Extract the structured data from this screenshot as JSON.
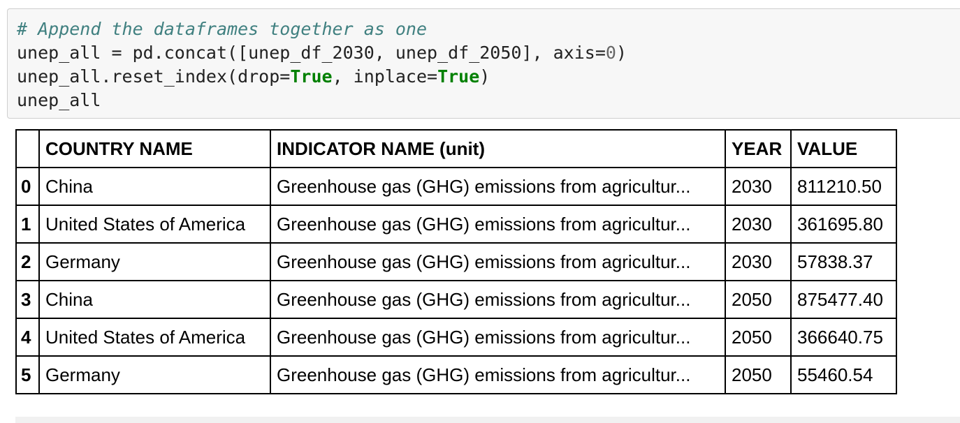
{
  "code_cell": {
    "lines": [
      {
        "comment": "# Append the dataframes together as one"
      },
      {
        "t1": "unep_all = pd.concat([unep_df_2030, unep_df_2050], axis=",
        "n1": "0",
        "t2": ")"
      },
      {
        "t1": "unep_all.reset_index(drop=",
        "k1": "True",
        "t2": ", inplace=",
        "k2": "True",
        "t3": ")"
      },
      {
        "t1": "unep_all"
      }
    ]
  },
  "table": {
    "columns": [
      "",
      "COUNTRY NAME",
      "INDICATOR NAME (unit)",
      "YEAR",
      "VALUE"
    ],
    "rows": [
      {
        "index": "0",
        "country": "China",
        "indicator": "Greenhouse gas (GHG) emissions from agricultur...",
        "year": "2030",
        "value": "811210.50"
      },
      {
        "index": "1",
        "country": "United States of America",
        "indicator": "Greenhouse gas (GHG) emissions from agricultur...",
        "year": "2030",
        "value": "361695.80"
      },
      {
        "index": "2",
        "country": "Germany",
        "indicator": "Greenhouse gas (GHG) emissions from agricultur...",
        "year": "2030",
        "value": "57838.37"
      },
      {
        "index": "3",
        "country": "China",
        "indicator": "Greenhouse gas (GHG) emissions from agricultur...",
        "year": "2050",
        "value": "875477.40"
      },
      {
        "index": "4",
        "country": "United States of America",
        "indicator": "Greenhouse gas (GHG) emissions from agricultur...",
        "year": "2050",
        "value": "366640.75"
      },
      {
        "index": "5",
        "country": "Germany",
        "indicator": "Greenhouse gas (GHG) emissions from agricultur...",
        "year": "2050",
        "value": "55460.54"
      }
    ]
  }
}
